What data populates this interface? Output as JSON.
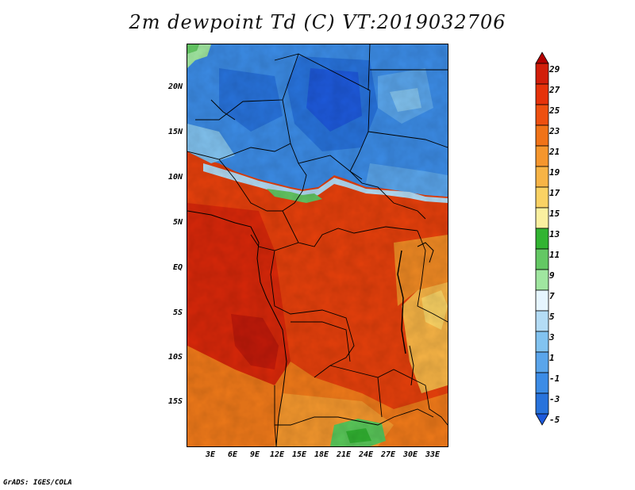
{
  "title": "2m dewpoint Td (C) VT:2019032706",
  "credit": "GrADS: IGES/COLA",
  "lat_labels": [
    "20N",
    "15N",
    "10N",
    "5N",
    "EQ",
    "5S",
    "10S",
    "15S"
  ],
  "lon_labels": [
    "3E",
    "6E",
    "9E",
    "12E",
    "15E",
    "18E",
    "21E",
    "24E",
    "27E",
    "30E",
    "33E"
  ],
  "legend": {
    "labels": [
      "29",
      "27",
      "25",
      "23",
      "21",
      "19",
      "17",
      "15",
      "13",
      "11",
      "9",
      "7",
      "5",
      "3",
      "1",
      "-1",
      "-3",
      "-5"
    ],
    "colors": [
      "#b40000",
      "#d21e0a",
      "#e6320a",
      "#ee5010",
      "#f07318",
      "#f5962d",
      "#f7b446",
      "#fad264",
      "#faf0a0",
      "#32b432",
      "#64c864",
      "#a0e6a0",
      "#e6f5ff",
      "#b4dcf5",
      "#82c3f0",
      "#5aa5eb",
      "#3c8ce6",
      "#2873dc",
      "#1e5adc"
    ]
  }
}
